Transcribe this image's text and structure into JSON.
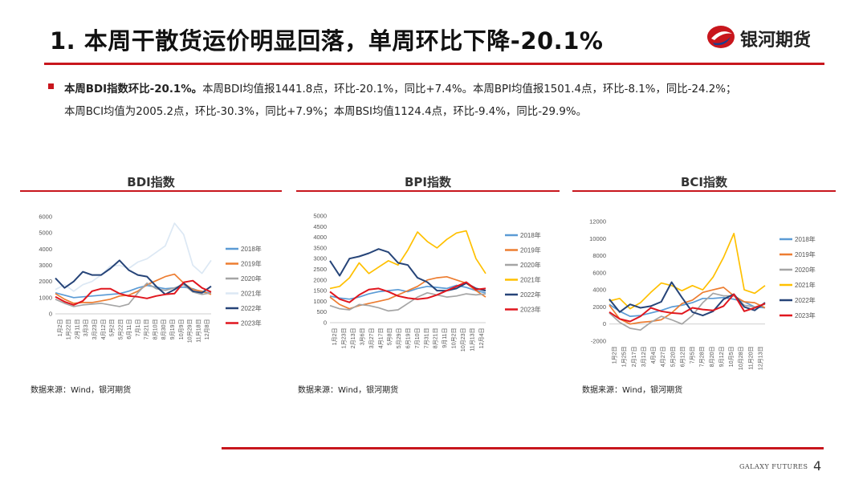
{
  "header": {
    "title": "1. 本周干散货运价明显回落，单周环比下降-20.1%",
    "logo_text": "银河期货"
  },
  "summary": {
    "bold": "本周BDI指数环比-20.1%。",
    "line1": "本周BDI均值报1441.8点，环比-20.1%，同比+7.4%。本周BPI均值报1501.4点，环比-8.1%，同比-24.2%；",
    "line2": "本周BCI均值为2005.2点，环比-30.3%，同比+7.9%；本周BSI均值1124.4点，环比-9.4%，同比-29.9%。"
  },
  "source_text": "数据来源：Wind，银河期货",
  "footer": {
    "brand": "GALAXY FUTURES",
    "page": "4"
  },
  "colors": {
    "accent": "#c8161d",
    "s2018": "#5b9bd5",
    "s2019": "#ed7d31",
    "s2020": "#a5a5a5",
    "s2021": "#ffc000",
    "s2022": "#264478",
    "s2023": "#e0161e",
    "s2021_bdi": "#dce8f4"
  },
  "chart_data": [
    {
      "type": "line",
      "title": "BDI指数",
      "ylim": [
        0,
        6000
      ],
      "yticks": [
        "0",
        "1000",
        "2000",
        "3000",
        "4000",
        "5000",
        "6000"
      ],
      "xticks": [
        "1月2日",
        "1月22日",
        "2月11日",
        "3月3日",
        "3月23日",
        "4月12日",
        "5月2日",
        "5月22日",
        "6月11日",
        "7月1日",
        "7月21日",
        "8月10日",
        "8月30日",
        "9月19日",
        "10月9日",
        "10月29日",
        "11月18日",
        "12月8日"
      ],
      "series": [
        {
          "name": "2018年",
          "color": "#5b9bd5",
          "values": [
            1300,
            1150,
            1000,
            1050,
            1100,
            1150,
            1200,
            1250,
            1400,
            1600,
            1750,
            1650,
            1550,
            1600,
            1650,
            1550,
            1350,
            1300
          ]
        },
        {
          "name": "2019年",
          "color": "#ed7d31",
          "values": [
            1250,
            900,
            650,
            700,
            700,
            800,
            900,
            1100,
            1150,
            1400,
            1800,
            2050,
            2300,
            2450,
            1900,
            1500,
            1400,
            1200
          ]
        },
        {
          "name": "2020年",
          "color": "#a5a5a5",
          "values": [
            900,
            650,
            450,
            550,
            600,
            650,
            550,
            450,
            600,
            1300,
            1900,
            1550,
            1450,
            1600,
            1800,
            1350,
            1200,
            1300
          ]
        },
        {
          "name": "2021年",
          "color": "#dce8f4",
          "values": [
            1500,
            1800,
            1400,
            1800,
            2000,
            2400,
            2950,
            3000,
            2800,
            3200,
            3400,
            3800,
            4200,
            5600,
            4900,
            3000,
            2500,
            3300
          ]
        },
        {
          "name": "2022年",
          "color": "#264478",
          "values": [
            2200,
            1600,
            2000,
            2600,
            2400,
            2400,
            2800,
            3300,
            2700,
            2400,
            2300,
            1700,
            1200,
            1500,
            1900,
            1400,
            1300,
            1700
          ]
        },
        {
          "name": "2023年",
          "color": "#e0161e",
          "values": [
            1050,
            750,
            550,
            800,
            1400,
            1550,
            1550,
            1250,
            1100,
            1050,
            950,
            1100,
            1200,
            1250,
            1950,
            2050,
            1600,
            1350
          ]
        }
      ]
    },
    {
      "type": "line",
      "title": "BPI指数",
      "ylim": [
        0,
        5000
      ],
      "yticks": [
        "0",
        "500",
        "1000",
        "1500",
        "2000",
        "2500",
        "3000",
        "3500",
        "4000",
        "4500",
        "5000"
      ],
      "xticks": [
        "1月2日",
        "1月23日",
        "2月13日",
        "3月6日",
        "3月27日",
        "4月17日",
        "5月8日",
        "5月29日",
        "6月19日",
        "7月10日",
        "7月31日",
        "8月21日",
        "9月11日",
        "10月2日",
        "10月23日",
        "11月13日",
        "12月4日"
      ],
      "series": [
        {
          "name": "2018年",
          "color": "#5b9bd5",
          "values": [
            1250,
            1150,
            1100,
            1200,
            1350,
            1450,
            1500,
            1550,
            1450,
            1600,
            1700,
            1650,
            1600,
            1750,
            1650,
            1500,
            1400
          ]
        },
        {
          "name": "2019年",
          "color": "#ed7d31",
          "values": [
            1200,
            850,
            650,
            800,
            900,
            1000,
            1100,
            1300,
            1500,
            1700,
            2000,
            2100,
            2150,
            2000,
            1850,
            1500,
            1200
          ]
        },
        {
          "name": "2020年",
          "color": "#a5a5a5",
          "values": [
            800,
            650,
            600,
            850,
            800,
            700,
            550,
            600,
            900,
            1200,
            1400,
            1300,
            1200,
            1250,
            1350,
            1300,
            1350
          ]
        },
        {
          "name": "2021年",
          "color": "#ffc000",
          "values": [
            1600,
            1700,
            2100,
            2800,
            2300,
            2600,
            2900,
            2700,
            3400,
            4250,
            3800,
            3500,
            3900,
            4200,
            4300,
            3000,
            2300
          ]
        },
        {
          "name": "2022年",
          "color": "#264478",
          "values": [
            2900,
            2200,
            3000,
            3100,
            3250,
            3450,
            3300,
            2800,
            2700,
            2100,
            1900,
            1500,
            1500,
            1600,
            1850,
            1600,
            1500
          ]
        },
        {
          "name": "2023年",
          "color": "#e0161e",
          "values": [
            1450,
            1100,
            950,
            1300,
            1550,
            1600,
            1450,
            1250,
            1150,
            1100,
            1150,
            1300,
            1500,
            1700,
            1900,
            1550,
            1600
          ]
        }
      ]
    },
    {
      "type": "line",
      "title": "BCI指数",
      "ylim": [
        -2000,
        12000
      ],
      "yticks": [
        "-2000",
        "0",
        "2000",
        "4000",
        "6000",
        "8000",
        "10000",
        "12000"
      ],
      "xticks": [
        "1月2日",
        "1月25日",
        "2月17日",
        "3月12日",
        "4月4日",
        "4月27日",
        "5月20日",
        "6月12日",
        "7月5日",
        "7月28日",
        "8月20日",
        "9月12日",
        "10月5日",
        "10月28日",
        "11月20日",
        "12月13日"
      ],
      "series": [
        {
          "name": "2018年",
          "color": "#5b9bd5",
          "values": [
            2300,
            1500,
            900,
            1000,
            1300,
            1600,
            2000,
            2200,
            2500,
            3000,
            3000,
            3100,
            2900,
            2600,
            2000,
            1900
          ]
        },
        {
          "name": "2019年",
          "color": "#ed7d31",
          "values": [
            2200,
            600,
            0,
            200,
            300,
            500,
            1300,
            2400,
            2800,
            3700,
            4000,
            4300,
            3300,
            2600,
            2500,
            1900
          ]
        },
        {
          "name": "2020年",
          "color": "#a5a5a5",
          "values": [
            1300,
            200,
            -500,
            -700,
            200,
            900,
            500,
            0,
            1000,
            2500,
            3600,
            3300,
            3300,
            2200,
            2000,
            2300
          ]
        },
        {
          "name": "2021年",
          "color": "#ffc000",
          "values": [
            2700,
            3000,
            1800,
            2500,
            3700,
            4800,
            4500,
            3900,
            4500,
            4000,
            5500,
            7800,
            10600,
            4000,
            3600,
            4500
          ]
        },
        {
          "name": "2022年",
          "color": "#264478",
          "values": [
            2900,
            1400,
            2300,
            1900,
            2100,
            2600,
            4900,
            3100,
            1400,
            1000,
            1500,
            2900,
            3500,
            2000,
            1600,
            2500
          ]
        },
        {
          "name": "2023年",
          "color": "#e0161e",
          "values": [
            1400,
            600,
            300,
            900,
            1900,
            1500,
            1300,
            1200,
            1900,
            1700,
            1600,
            2100,
            3500,
            1500,
            1900,
            2400
          ]
        }
      ]
    }
  ]
}
